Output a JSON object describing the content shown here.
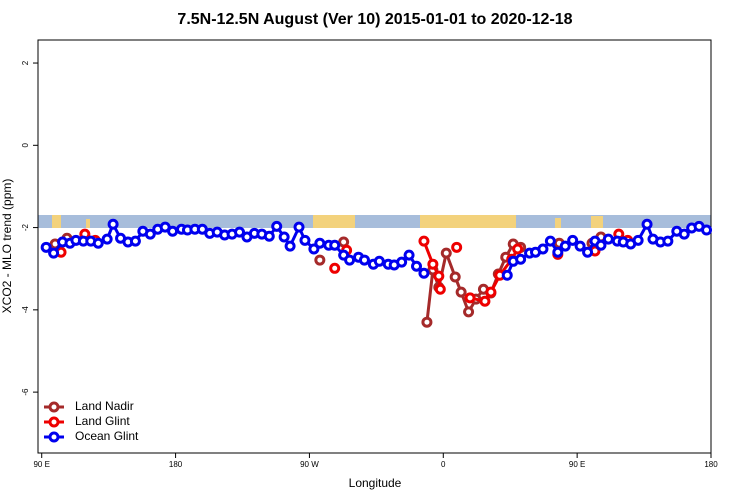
{
  "chart_data": {
    "type": "line",
    "title": "7.5N-12.5N August (Ver 10)   2015-01-01 to 2020-12-18",
    "xlabel": "Longitude",
    "ylabel": "XCO2 - MLO trend (ppm)",
    "xlim": [
      87.5,
      540
    ],
    "ylim": [
      -7.48,
      2.56
    ],
    "xticks": [
      {
        "value": 90,
        "label": "90 E"
      },
      180,
      {
        "value": 270,
        "label": "90 W"
      },
      {
        "value": 360,
        "label": "0"
      },
      {
        "value": 450,
        "label": "90 E"
      },
      {
        "value": 540,
        "label": "180"
      }
    ],
    "yticks": [
      2,
      0,
      -2,
      -4,
      -6
    ],
    "legend": "bottom-left",
    "series": [
      {
        "name": "Land Nadir",
        "color": "#a52a2a",
        "x": [
          99,
          107,
          null,
          277,
          null,
          293,
          null,
          349,
          353,
          357,
          362,
          368,
          372,
          377,
          382,
          387,
          392,
          397,
          402,
          407,
          412,
          null,
          438,
          null,
          460,
          466
        ],
        "values": [
          -2.4,
          -2.26,
          null,
          -2.79,
          null,
          -2.35,
          null,
          -4.3,
          -3.03,
          -3.45,
          -2.62,
          -3.2,
          -3.57,
          -4.05,
          -3.74,
          -3.5,
          -3.59,
          -3.13,
          -2.72,
          -2.4,
          -2.48,
          null,
          -2.38,
          null,
          -2.38,
          -2.23
        ]
      },
      {
        "name": "Land Glint",
        "color": "#ee0000",
        "x": [
          103,
          null,
          119,
          126,
          null,
          287,
          null,
          295,
          null,
          347,
          353,
          357,
          358,
          null,
          369,
          null,
          378,
          388,
          392,
          398,
          406,
          410,
          null,
          437,
          null,
          462,
          null,
          478,
          484
        ],
        "values": [
          -2.6,
          null,
          -2.16,
          -2.31,
          null,
          -2.99,
          null,
          -2.55,
          null,
          -2.33,
          -2.89,
          -3.18,
          -3.5,
          null,
          -2.48,
          null,
          -3.71,
          -3.79,
          -3.57,
          -3.16,
          -2.77,
          -2.52,
          null,
          -2.65,
          null,
          -2.57,
          null,
          -2.16,
          -2.31
        ]
      },
      {
        "name": "Ocean Glint",
        "color": "#0000ee",
        "x": [
          93,
          98,
          104,
          109,
          113,
          118,
          123,
          128,
          134,
          138,
          143,
          148,
          153,
          158,
          163,
          168,
          173,
          178,
          184,
          188,
          193,
          198,
          203,
          208,
          213,
          218,
          223,
          228,
          233,
          238,
          243,
          248,
          253,
          257,
          263,
          267,
          273,
          277,
          283,
          287,
          293,
          297,
          303,
          307,
          313,
          317,
          323,
          327,
          332,
          337,
          342,
          347,
          null,
          403,
          407,
          412,
          418,
          422,
          427,
          432,
          437,
          442,
          447,
          452,
          457,
          462,
          466,
          471,
          477,
          481,
          486,
          491,
          497,
          501,
          506,
          511,
          517,
          522,
          527,
          532,
          537
        ],
        "values": [
          -2.48,
          -2.62,
          -2.35,
          -2.38,
          -2.31,
          -2.33,
          -2.33,
          -2.38,
          -2.28,
          -1.92,
          -2.26,
          -2.35,
          -2.33,
          -2.09,
          -2.16,
          -2.04,
          -1.99,
          -2.09,
          -2.04,
          -2.06,
          -2.04,
          -2.04,
          -2.14,
          -2.11,
          -2.18,
          -2.16,
          -2.11,
          -2.23,
          -2.14,
          -2.16,
          -2.21,
          -1.97,
          -2.23,
          -2.45,
          -1.99,
          -2.31,
          -2.52,
          -2.38,
          -2.43,
          -2.43,
          -2.67,
          -2.79,
          -2.72,
          -2.79,
          -2.89,
          -2.82,
          -2.89,
          -2.91,
          -2.84,
          -2.67,
          -2.94,
          -3.11,
          null,
          -3.16,
          -2.82,
          -2.77,
          -2.62,
          -2.6,
          -2.52,
          -2.33,
          -2.6,
          -2.45,
          -2.31,
          -2.45,
          -2.6,
          -2.33,
          -2.43,
          -2.28,
          -2.33,
          -2.35,
          -2.4,
          -2.31,
          -1.92,
          -2.28,
          -2.35,
          -2.33,
          -2.09,
          -2.16,
          -2.01,
          -1.97,
          -2.06
        ]
      }
    ]
  }
}
